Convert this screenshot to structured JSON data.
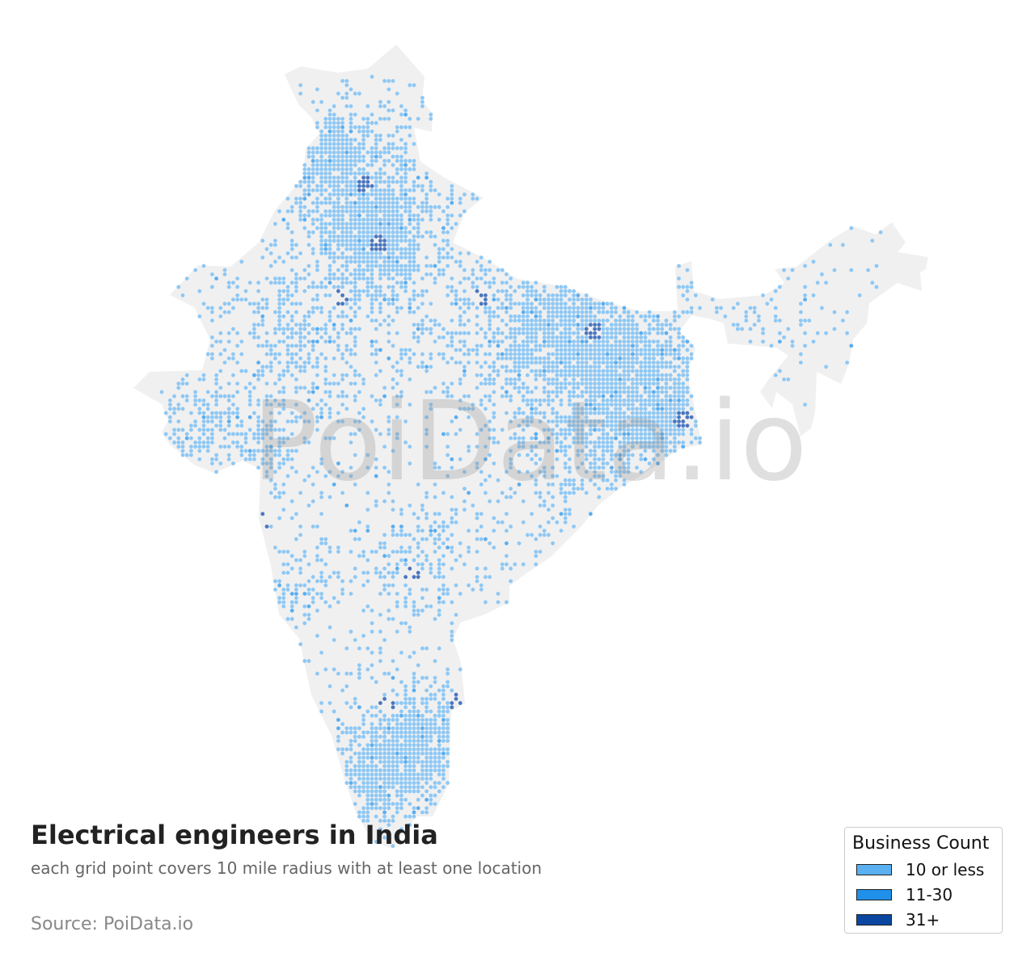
{
  "map": {
    "region": "India",
    "watermark": "PoiData.io",
    "land_color": "#f0f0f0",
    "dot_colors": {
      "low": "#8ec8f5",
      "mid": "#5aaef0",
      "high": "#4a76c0"
    }
  },
  "title": "Electrical engineers in India",
  "subtitle": "each grid point covers 10 mile radius with at least one location",
  "source": "Source: PoiData.io",
  "legend": {
    "title": "Business Count",
    "items": [
      {
        "label": "10 or less",
        "color": "#5ab0f0"
      },
      {
        "label": "11-30",
        "color": "#2090ea"
      },
      {
        "label": "31+",
        "color": "#0b47a0"
      }
    ]
  }
}
